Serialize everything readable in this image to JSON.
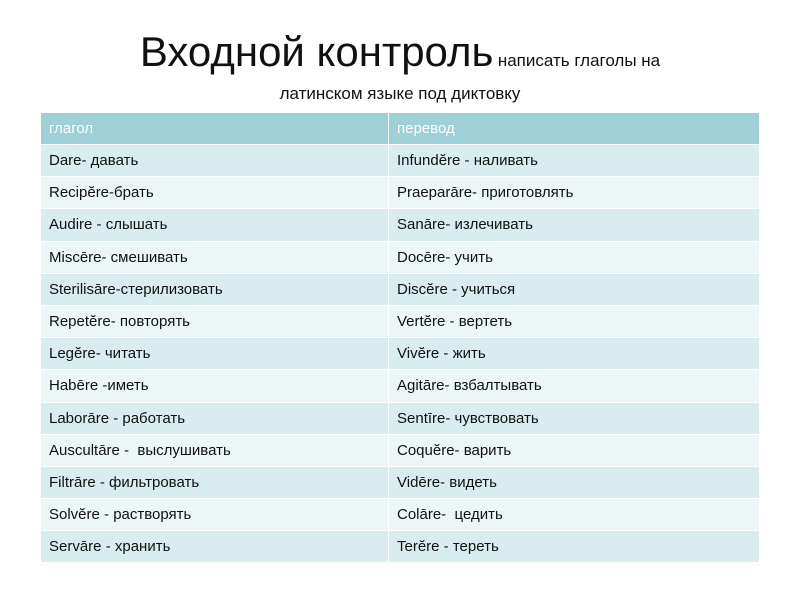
{
  "header": {
    "title": "Входной контроль",
    "subtitle": [
      "написать глаголы на",
      "латинском языке под диктовку"
    ]
  },
  "table": {
    "columns": [
      "глагол",
      "перевод"
    ],
    "rows": [
      [
        "Dare- давать",
        "Infundĕre - наливать"
      ],
      [
        "Recipĕre-брать",
        "Praeparāre- приготовлять"
      ],
      [
        "Audire - слышать",
        "Sanāre- излечивать"
      ],
      [
        "Miscēre- смешивать",
        "Docēre- учить"
      ],
      [
        "Sterilisāre-стерилизовать",
        "Discĕre - учиться"
      ],
      [
        "Repetĕre- повторять",
        "Vertĕre - вертеть"
      ],
      [
        "Legĕre- читать",
        "Vivĕre - жить"
      ],
      [
        "Habēre -иметь",
        "Agitāre- взбалтывать"
      ],
      [
        "Laborāre - работать",
        "Sentīre- чувствовать"
      ],
      [
        "Auscultāre -  выслушивать",
        "Coquĕre- варить"
      ],
      [
        "Filtrāre - фильтровать",
        "Vidēre- видеть"
      ],
      [
        "Solvĕre - растворять",
        "Colāre-  цедить"
      ],
      [
        "Servāre - хранить",
        "Terĕre - тереть"
      ]
    ]
  }
}
